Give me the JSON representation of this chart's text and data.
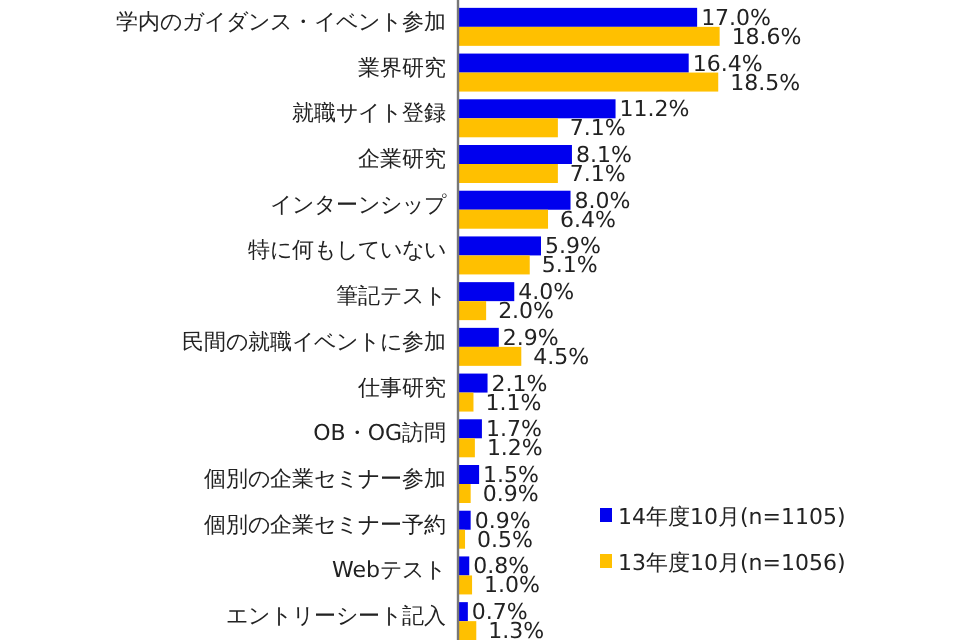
{
  "chart_data": {
    "type": "bar",
    "orientation": "horizontal",
    "categories": [
      "学内のガイダンス・イベント参加",
      "業界研究",
      "就職サイト登録",
      "企業研究",
      "インターンシップ",
      "特に何もしていない",
      "筆記テスト",
      "民間の就職イベントに参加",
      "仕事研究",
      "OB・OG訪問",
      "個別の企業セミナー参加",
      "個別の企業セミナー予約",
      "Webテスト",
      "エントリーシート記入"
    ],
    "series": [
      {
        "name": "14年度10月(n=1105)",
        "color": "#0000ee",
        "values": [
          17.0,
          16.4,
          11.2,
          8.1,
          8.0,
          5.9,
          4.0,
          2.9,
          2.1,
          1.7,
          1.5,
          0.9,
          0.8,
          0.7
        ],
        "value_labels": [
          "17.0%",
          "16.4%",
          "11.2%",
          "8.1%",
          "8.0%",
          "5.9%",
          "4.0%",
          "2.9%",
          "2.1%",
          "1.7%",
          "1.5%",
          "0.9%",
          "0.8%",
          "0.7%"
        ]
      },
      {
        "name": "13年度10月(n=1056)",
        "color": "#ffc000",
        "values": [
          18.6,
          18.5,
          7.1,
          7.1,
          6.4,
          5.1,
          2.0,
          4.5,
          1.1,
          1.2,
          0.9,
          0.5,
          1.0,
          1.3
        ],
        "value_labels": [
          "18.6%",
          "18.5%",
          "7.1%",
          "7.1%",
          "6.4%",
          "5.1%",
          "2.0%",
          "4.5%",
          "1.1%",
          "1.2%",
          "0.9%",
          "0.5%",
          "1.0%",
          "1.3%"
        ]
      }
    ],
    "legend": "bottom right"
  }
}
